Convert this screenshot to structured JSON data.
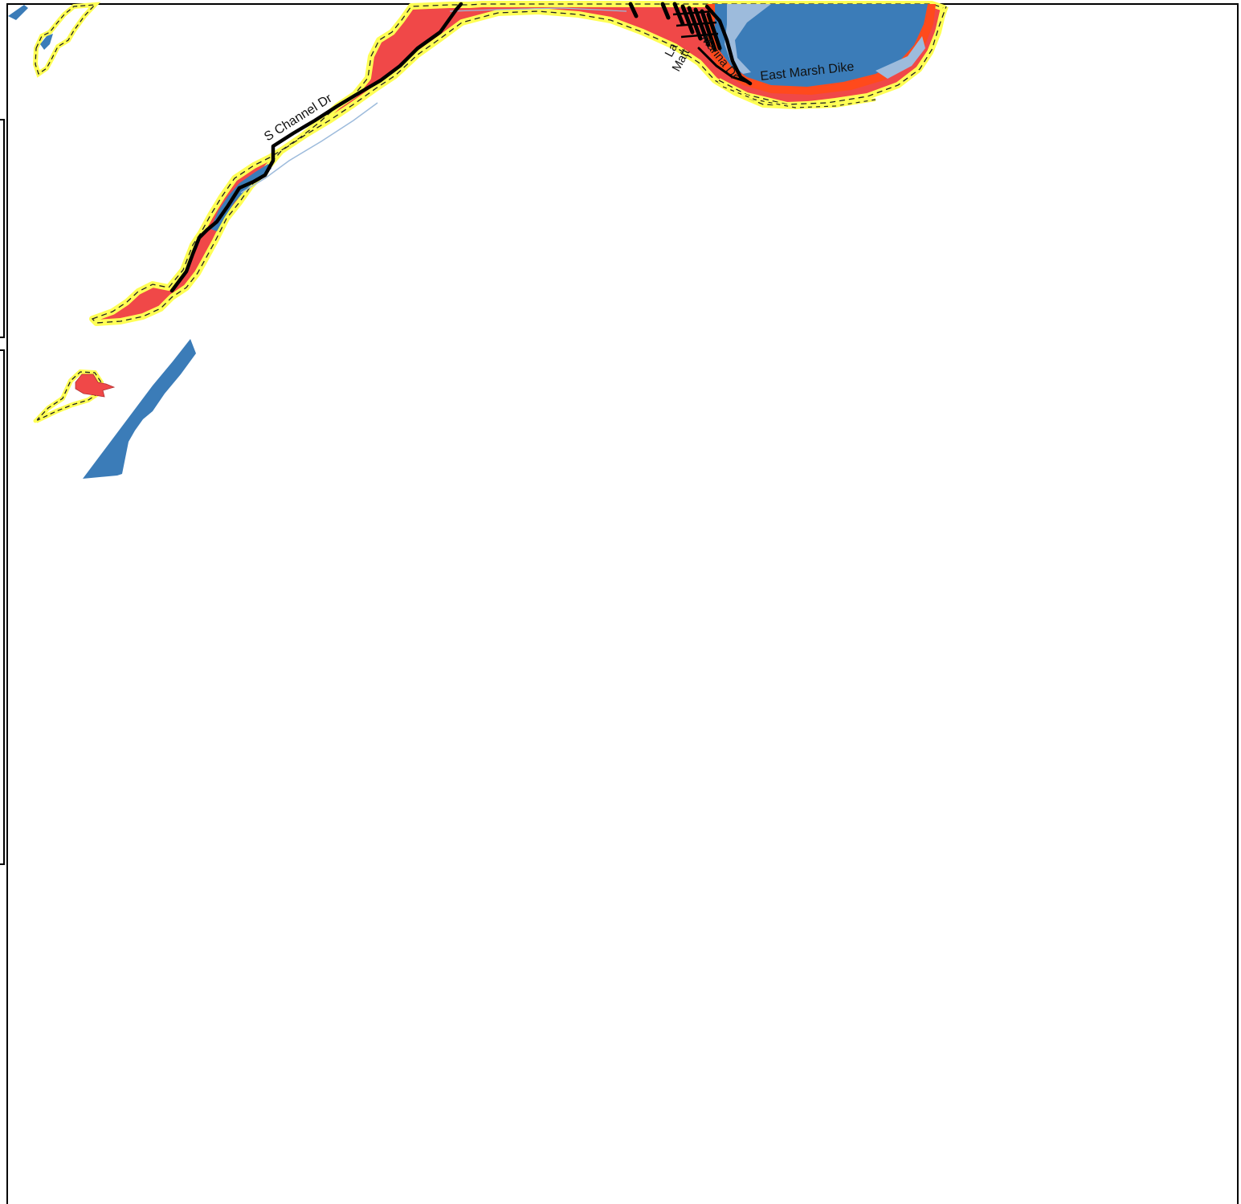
{
  "map": {
    "colors": {
      "flood_zone_red": "#f04848",
      "flood_zone_orange": "#ff4a1c",
      "water_blue": "#3b7cb8",
      "water_light_blue": "#9dbbdc",
      "buffer_yellow": "#ffff55",
      "buffer_dash": "#222222",
      "road_black": "#000000",
      "frame_black": "#000000",
      "background": "#ffffff"
    },
    "road_labels": {
      "s_channel_dr": "S Channel Dr",
      "east_marsh_dike": "East Marsh Dike",
      "marina_dr": "Marina Dr",
      "lazy_lane": "La",
      "matt_dr": "Matt"
    }
  }
}
